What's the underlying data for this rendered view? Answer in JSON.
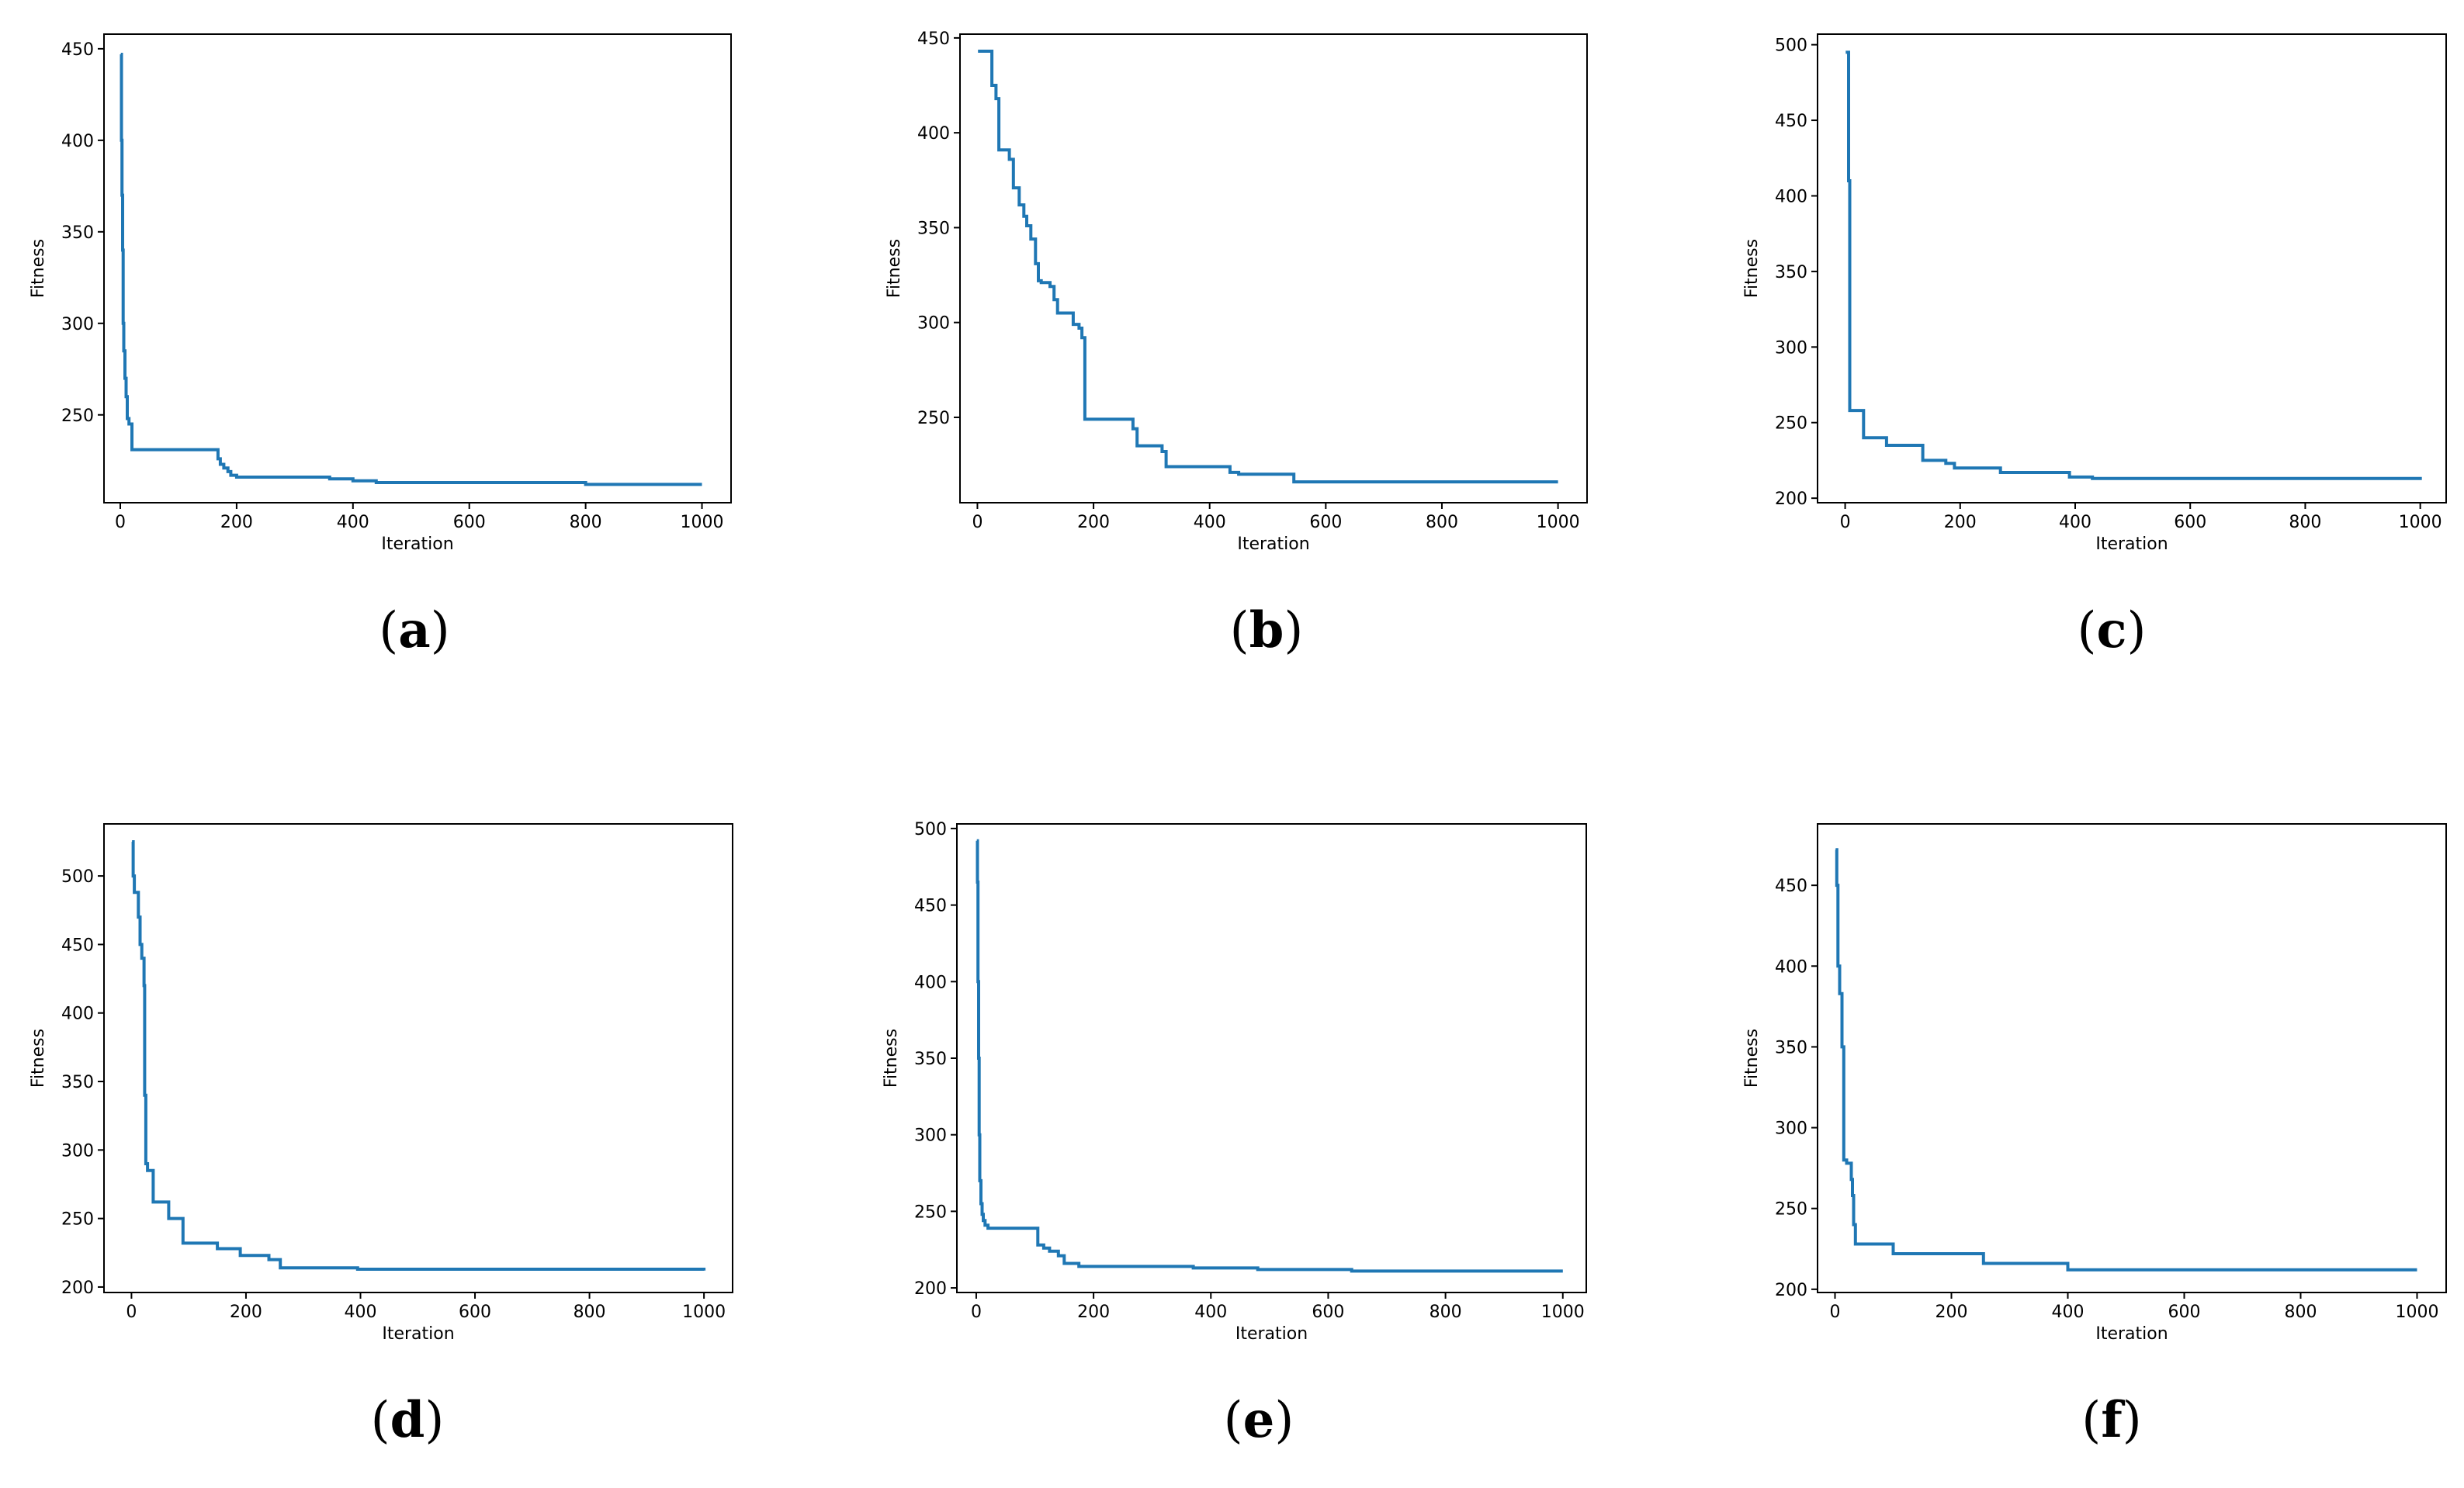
{
  "chart_data": [
    {
      "type": "line",
      "caption": "a",
      "xlabel": "Iteration",
      "ylabel": "Fitness",
      "xlim": [
        -28,
        1050
      ],
      "ylim": [
        202,
        458
      ],
      "xticks": [
        0,
        200,
        400,
        600,
        800,
        1000
      ],
      "yticks": [
        250,
        300,
        350,
        400,
        450
      ],
      "color": "#1f77b4",
      "series": [
        {
          "x": [
            1,
            2,
            3,
            4,
            5,
            6,
            8,
            10,
            12,
            15,
            20,
            165,
            168,
            172,
            178,
            185,
            190,
            200,
            360,
            400,
            440,
            800,
            1000
          ],
          "y": [
            447,
            400,
            370,
            340,
            300,
            285,
            270,
            260,
            248,
            245,
            231,
            231,
            226,
            223,
            221,
            219,
            217,
            216,
            215,
            214,
            213,
            212,
            212
          ]
        }
      ]
    },
    {
      "type": "line",
      "caption": "b",
      "xlabel": "Iteration",
      "ylabel": "Fitness",
      "xlim": [
        -30,
        1050
      ],
      "ylim": [
        205,
        452
      ],
      "xticks": [
        0,
        200,
        400,
        600,
        800,
        1000
      ],
      "yticks": [
        250,
        300,
        350,
        400,
        450
      ],
      "color": "#1f77b4",
      "series": [
        {
          "x": [
            1,
            18,
            25,
            32,
            37,
            55,
            62,
            72,
            80,
            85,
            92,
            100,
            105,
            110,
            125,
            132,
            138,
            155,
            165,
            175,
            180,
            185,
            265,
            268,
            275,
            310,
            318,
            325,
            420,
            435,
            450,
            545,
            1000
          ],
          "y": [
            443,
            443,
            425,
            418,
            391,
            386,
            371,
            362,
            356,
            351,
            344,
            331,
            322,
            321,
            319,
            312,
            305,
            305,
            299,
            297,
            292,
            249,
            249,
            244,
            235,
            235,
            232,
            224,
            224,
            221,
            220,
            216,
            216
          ]
        }
      ]
    },
    {
      "type": "line",
      "caption": "c",
      "xlabel": "Iteration",
      "ylabel": "Fitness",
      "xlim": [
        -48,
        1045
      ],
      "ylim": [
        197,
        507
      ],
      "xticks": [
        0,
        200,
        400,
        600,
        800,
        1000
      ],
      "yticks": [
        200,
        250,
        300,
        350,
        400,
        450,
        500
      ],
      "color": "#1f77b4",
      "series": [
        {
          "x": [
            1,
            5,
            6,
            8,
            30,
            32,
            70,
            72,
            130,
            135,
            175,
            190,
            270,
            390,
            430,
            1000
          ],
          "y": [
            495,
            495,
            410,
            258,
            258,
            240,
            240,
            235,
            235,
            225,
            223,
            220,
            217,
            214,
            213,
            212
          ]
        }
      ]
    },
    {
      "type": "line",
      "caption": "d",
      "xlabel": "Iteration",
      "ylabel": "Fitness",
      "xlim": [
        -48,
        1050
      ],
      "ylim": [
        196,
        538
      ],
      "xticks": [
        0,
        200,
        400,
        600,
        800,
        1000
      ],
      "yticks": [
        200,
        250,
        300,
        350,
        400,
        450,
        500
      ],
      "color": "#1f77b4",
      "series": [
        {
          "x": [
            1,
            3,
            5,
            8,
            12,
            15,
            18,
            20,
            22,
            23,
            25,
            28,
            35,
            38,
            40,
            60,
            65,
            90,
            150,
            190,
            240,
            260,
            395,
            1000
          ],
          "y": [
            525,
            500,
            488,
            488,
            470,
            450,
            440,
            440,
            420,
            340,
            290,
            285,
            285,
            262,
            262,
            262,
            250,
            232,
            228,
            223,
            220,
            214,
            213,
            212
          ]
        }
      ]
    },
    {
      "type": "line",
      "caption": "e",
      "xlabel": "Iteration",
      "ylabel": "Fitness",
      "xlim": [
        -33,
        1040
      ],
      "ylim": [
        197,
        503
      ],
      "xticks": [
        0,
        200,
        400,
        600,
        800,
        1000
      ],
      "yticks": [
        200,
        250,
        300,
        350,
        400,
        450,
        500
      ],
      "color": "#1f77b4",
      "series": [
        {
          "x": [
            1,
            2,
            3,
            4,
            5,
            6,
            8,
            10,
            12,
            15,
            20,
            100,
            105,
            115,
            125,
            140,
            150,
            175,
            370,
            480,
            640,
            1000
          ],
          "y": [
            492,
            465,
            400,
            350,
            300,
            270,
            255,
            248,
            244,
            241,
            239,
            239,
            228,
            226,
            224,
            221,
            216,
            214,
            213,
            212,
            211,
            211
          ]
        }
      ]
    },
    {
      "type": "line",
      "caption": "f",
      "xlabel": "Iteration",
      "ylabel": "Fitness",
      "xlim": [
        -30,
        1050
      ],
      "ylim": [
        198,
        488
      ],
      "xticks": [
        0,
        200,
        400,
        600,
        800,
        1000
      ],
      "yticks": [
        200,
        250,
        300,
        350,
        400,
        450
      ],
      "color": "#1f77b4",
      "series": [
        {
          "x": [
            1,
            2,
            3,
            5,
            8,
            10,
            12,
            15,
            20,
            25,
            28,
            30,
            32,
            35,
            40,
            100,
            180,
            250,
            255,
            330,
            400,
            1000
          ],
          "y": [
            472,
            472,
            450,
            400,
            383,
            383,
            350,
            280,
            278,
            278,
            268,
            258,
            240,
            228,
            228,
            222,
            222,
            222,
            216,
            216,
            212,
            212
          ]
        }
      ]
    }
  ]
}
